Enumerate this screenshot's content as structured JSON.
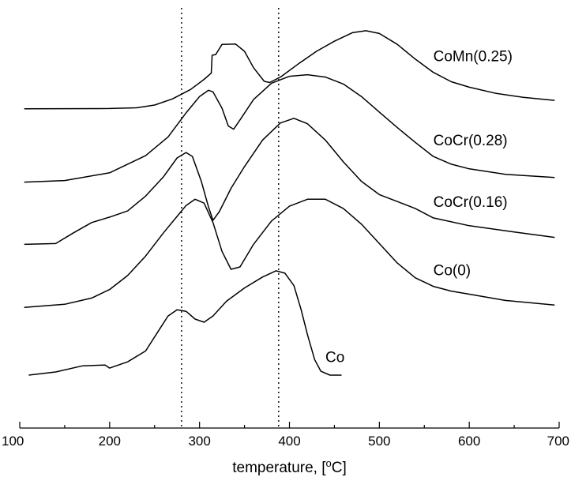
{
  "chart_data": {
    "type": "line",
    "title": "",
    "xlabel": "temperature, [",
    "xlabel_sup": "o",
    "xlabel_unit": "C]",
    "xlim": [
      100,
      700
    ],
    "xticks": [
      100,
      200,
      300,
      400,
      500,
      600,
      700
    ],
    "y_axis_shown": false,
    "reference_lines": [
      280,
      388
    ],
    "series": [
      {
        "name": "CoMn(0.25)",
        "label_x": 560,
        "points": [
          [
            105,
            1.02
          ],
          [
            150,
            1.04
          ],
          [
            200,
            1.06
          ],
          [
            230,
            1.15
          ],
          [
            250,
            1.5
          ],
          [
            270,
            2.3
          ],
          [
            290,
            3.5
          ],
          [
            305,
            4.8
          ],
          [
            313,
            5.6
          ],
          [
            314,
            7.9
          ],
          [
            318,
            8.0
          ],
          [
            325,
            9.3
          ],
          [
            340,
            9.35
          ],
          [
            350,
            8.4
          ],
          [
            360,
            6.3
          ],
          [
            372,
            4.55
          ],
          [
            378,
            4.4
          ],
          [
            390,
            5.1
          ],
          [
            410,
            6.8
          ],
          [
            430,
            8.4
          ],
          [
            450,
            9.7
          ],
          [
            470,
            10.8
          ],
          [
            485,
            11.05
          ],
          [
            500,
            10.7
          ],
          [
            520,
            9.3
          ],
          [
            540,
            7.4
          ],
          [
            560,
            5.7
          ],
          [
            580,
            4.5
          ],
          [
            600,
            3.8
          ],
          [
            630,
            3.0
          ],
          [
            660,
            2.5
          ],
          [
            695,
            2.1
          ]
        ]
      },
      {
        "name": "CoCr(0.28)",
        "label_x": 560,
        "points": [
          [
            105,
            -8.4
          ],
          [
            150,
            -8.2
          ],
          [
            200,
            -7.2
          ],
          [
            240,
            -5.0
          ],
          [
            265,
            -2.6
          ],
          [
            285,
            0.5
          ],
          [
            300,
            2.6
          ],
          [
            310,
            3.4
          ],
          [
            315,
            3.2
          ],
          [
            325,
            1.1
          ],
          [
            332,
            -1.2
          ],
          [
            338,
            -1.6
          ],
          [
            345,
            -0.4
          ],
          [
            360,
            2.2
          ],
          [
            380,
            4.3
          ],
          [
            400,
            5.2
          ],
          [
            420,
            5.4
          ],
          [
            440,
            5.1
          ],
          [
            460,
            4.2
          ],
          [
            480,
            2.6
          ],
          [
            500,
            0.6
          ],
          [
            520,
            -1.4
          ],
          [
            540,
            -3.3
          ],
          [
            560,
            -5.1
          ],
          [
            580,
            -6.1
          ],
          [
            600,
            -6.7
          ],
          [
            640,
            -7.4
          ],
          [
            695,
            -7.8
          ]
        ]
      },
      {
        "name": "CoCr(0.16)",
        "label_x": 560,
        "points": [
          [
            105,
            -16.4
          ],
          [
            140,
            -16.3
          ],
          [
            160,
            -14.9
          ],
          [
            180,
            -13.6
          ],
          [
            200,
            -12.9
          ],
          [
            220,
            -12.1
          ],
          [
            240,
            -10.2
          ],
          [
            260,
            -7.7
          ],
          [
            275,
            -5.3
          ],
          [
            285,
            -4.6
          ],
          [
            292,
            -5.1
          ],
          [
            302,
            -8.3
          ],
          [
            310,
            -11.6
          ],
          [
            315,
            -13.3
          ],
          [
            322,
            -12.2
          ],
          [
            335,
            -9.2
          ],
          [
            350,
            -6.4
          ],
          [
            370,
            -3.0
          ],
          [
            390,
            -0.8
          ],
          [
            405,
            -0.2
          ],
          [
            420,
            -0.9
          ],
          [
            440,
            -3.0
          ],
          [
            460,
            -5.8
          ],
          [
            480,
            -8.3
          ],
          [
            500,
            -10.0
          ],
          [
            520,
            -10.9
          ],
          [
            540,
            -11.8
          ],
          [
            560,
            -13.0
          ],
          [
            600,
            -14.0
          ],
          [
            650,
            -14.8
          ],
          [
            695,
            -15.5
          ]
        ]
      },
      {
        "name": "Co(0)",
        "label_x": 560,
        "points": [
          [
            105,
            -24.5
          ],
          [
            150,
            -24.1
          ],
          [
            180,
            -23.3
          ],
          [
            200,
            -22.2
          ],
          [
            220,
            -20.4
          ],
          [
            240,
            -17.9
          ],
          [
            260,
            -14.9
          ],
          [
            275,
            -12.8
          ],
          [
            285,
            -11.4
          ],
          [
            295,
            -10.6
          ],
          [
            305,
            -11.1
          ],
          [
            315,
            -13.6
          ],
          [
            325,
            -17.3
          ],
          [
            335,
            -19.6
          ],
          [
            345,
            -19.3
          ],
          [
            360,
            -16.4
          ],
          [
            380,
            -13.4
          ],
          [
            400,
            -11.5
          ],
          [
            420,
            -10.6
          ],
          [
            440,
            -10.6
          ],
          [
            460,
            -11.8
          ],
          [
            480,
            -13.8
          ],
          [
            500,
            -16.3
          ],
          [
            520,
            -18.8
          ],
          [
            540,
            -20.7
          ],
          [
            560,
            -21.8
          ],
          [
            580,
            -22.4
          ],
          [
            600,
            -22.8
          ],
          [
            640,
            -23.6
          ],
          [
            695,
            -24.2
          ]
        ]
      },
      {
        "name": "Co",
        "label_x": 440,
        "points": [
          [
            110,
            -33.2
          ],
          [
            140,
            -32.8
          ],
          [
            170,
            -32.0
          ],
          [
            195,
            -31.9
          ],
          [
            200,
            -32.3
          ],
          [
            220,
            -31.5
          ],
          [
            240,
            -30.1
          ],
          [
            255,
            -27.4
          ],
          [
            265,
            -25.6
          ],
          [
            275,
            -24.8
          ],
          [
            285,
            -25.0
          ],
          [
            295,
            -26.0
          ],
          [
            305,
            -26.4
          ],
          [
            315,
            -25.6
          ],
          [
            330,
            -23.7
          ],
          [
            350,
            -22.0
          ],
          [
            370,
            -20.6
          ],
          [
            385,
            -19.8
          ],
          [
            395,
            -20.1
          ],
          [
            405,
            -21.7
          ],
          [
            413,
            -24.8
          ],
          [
            420,
            -28.0
          ],
          [
            428,
            -31.2
          ],
          [
            435,
            -32.7
          ],
          [
            445,
            -33.2
          ],
          [
            458,
            -33.2
          ]
        ]
      }
    ]
  }
}
